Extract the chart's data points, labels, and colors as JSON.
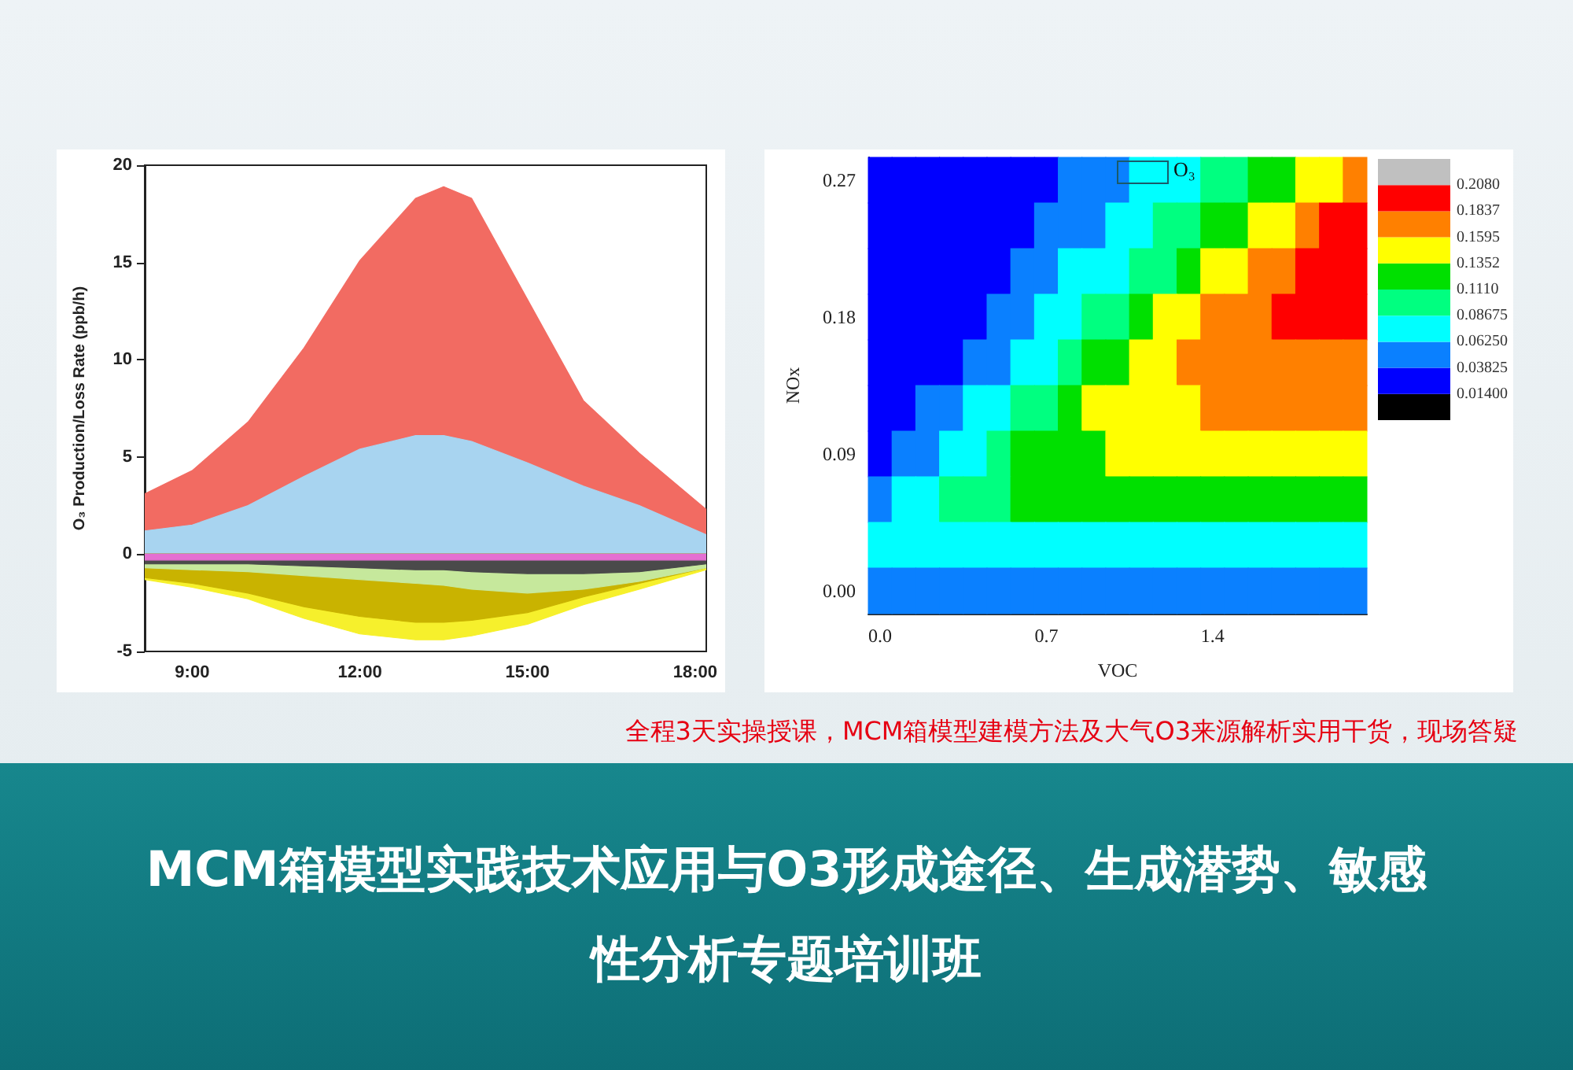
{
  "chart_data": [
    {
      "type": "area",
      "marker": "none",
      "ylabel": "O₃ Production/Loss Rate (ppb/h)",
      "x": [
        8.15,
        9,
        10,
        11,
        12,
        13,
        13.5,
        14,
        15,
        16,
        17,
        18.2
      ],
      "xlim": [
        8.15,
        18.2
      ],
      "xticks": [
        {
          "value": 9,
          "label": "9:00"
        },
        {
          "value": 12,
          "label": "12:00"
        },
        {
          "value": 15,
          "label": "15:00"
        },
        {
          "value": 18,
          "label": "18:00"
        }
      ],
      "ylim": [
        -5,
        20
      ],
      "yticks": [
        -5,
        0,
        5,
        10,
        15,
        20
      ],
      "series": [
        {
          "color": "#f26b62",
          "values": [
            3.1,
            4.3,
            6.8,
            10.6,
            15.1,
            18.3,
            18.9,
            18.3,
            13.1,
            7.9,
            5.2,
            2.3
          ]
        },
        {
          "color": "#a8d4f0",
          "values": [
            1.2,
            1.5,
            2.5,
            4.0,
            5.4,
            6.1,
            6.1,
            5.8,
            4.7,
            3.5,
            2.5,
            1.0
          ]
        },
        {
          "color": "#f6f02c",
          "values": [
            -1.3,
            -1.7,
            -2.3,
            -3.3,
            -4.1,
            -4.4,
            -4.4,
            -4.2,
            -3.6,
            -2.6,
            -1.8,
            -0.8
          ]
        },
        {
          "color": "#c9b300",
          "values": [
            -1.2,
            -1.5,
            -2.0,
            -2.7,
            -3.2,
            -3.5,
            -3.5,
            -3.4,
            -3.0,
            -2.2,
            -1.5,
            -0.7
          ]
        },
        {
          "color": "#c6e89c",
          "values": [
            -0.7,
            -0.8,
            -0.9,
            -1.1,
            -1.3,
            -1.5,
            -1.6,
            -1.8,
            -2.0,
            -1.8,
            -1.4,
            -0.7
          ]
        },
        {
          "color": "#4a4a4a",
          "values": [
            -0.5,
            -0.5,
            -0.5,
            -0.6,
            -0.7,
            -0.8,
            -0.8,
            -0.9,
            -1.0,
            -1.0,
            -0.9,
            -0.5
          ]
        },
        {
          "color": "#e46fd2",
          "values": [
            -0.3,
            -0.3,
            -0.3,
            -0.3,
            -0.3,
            -0.3,
            -0.3,
            -0.3,
            -0.3,
            -0.3,
            -0.3,
            -0.3
          ]
        }
      ]
    },
    {
      "type": "heatmap",
      "xlabel": "VOC",
      "ylabel": "NOx",
      "annotations": [
        "O₃"
      ],
      "categories": [
        "0.0",
        null,
        null,
        null,
        null,
        null,
        null,
        "0.7",
        null,
        null,
        null,
        null,
        null,
        null,
        "1.4",
        null,
        null,
        null,
        null,
        null,
        null
      ],
      "y_categories": [
        "0.27",
        null,
        null,
        "0.18",
        null,
        null,
        "0.09",
        null,
        null,
        "0.00"
      ],
      "clim": [
        -0.01025,
        0.23225
      ],
      "cticks": [
        {
          "value": 0.014,
          "label": "0.01400"
        },
        {
          "value": 0.03825,
          "label": "0.03825"
        },
        {
          "value": 0.0625,
          "label": "0.06250"
        },
        {
          "value": 0.08675,
          "label": "0.08675"
        },
        {
          "value": 0.111,
          "label": "0.1110"
        },
        {
          "value": 0.1352,
          "label": "0.1352"
        },
        {
          "value": 0.1595,
          "label": "0.1595"
        },
        {
          "value": 0.1837,
          "label": "0.1837"
        },
        {
          "value": 0.208,
          "label": "0.2080"
        }
      ],
      "colors": [
        "#000000",
        "#0000ff",
        "#0a80ff",
        "#00ffff",
        "#00ff80",
        "#00e000",
        "#ffff00",
        "#ff8000",
        "#ff0000",
        "#c0c0c0"
      ],
      "cells": [
        [
          0.026,
          0.026,
          0.026,
          0.026,
          0.026,
          0.026,
          0.026,
          0.026,
          0.05,
          0.05,
          0.05,
          0.075,
          0.075,
          0.075,
          0.099,
          0.099,
          0.123,
          0.123,
          0.147,
          0.147,
          0.172
        ],
        [
          0.026,
          0.026,
          0.026,
          0.026,
          0.026,
          0.026,
          0.026,
          0.05,
          0.05,
          0.05,
          0.075,
          0.075,
          0.099,
          0.099,
          0.123,
          0.123,
          0.147,
          0.147,
          0.172,
          0.196,
          0.196
        ],
        [
          0.026,
          0.026,
          0.026,
          0.026,
          0.026,
          0.026,
          0.05,
          0.05,
          0.075,
          0.075,
          0.075,
          0.099,
          0.099,
          0.123,
          0.147,
          0.147,
          0.172,
          0.172,
          0.196,
          0.196,
          0.196
        ],
        [
          0.026,
          0.026,
          0.026,
          0.026,
          0.026,
          0.05,
          0.05,
          0.075,
          0.075,
          0.099,
          0.099,
          0.123,
          0.147,
          0.147,
          0.172,
          0.172,
          0.172,
          0.196,
          0.196,
          0.196,
          0.196
        ],
        [
          0.026,
          0.026,
          0.026,
          0.026,
          0.05,
          0.05,
          0.075,
          0.075,
          0.099,
          0.123,
          0.123,
          0.147,
          0.147,
          0.172,
          0.172,
          0.172,
          0.172,
          0.172,
          0.172,
          0.172,
          0.172
        ],
        [
          0.026,
          0.026,
          0.05,
          0.05,
          0.075,
          0.075,
          0.099,
          0.099,
          0.123,
          0.147,
          0.147,
          0.147,
          0.147,
          0.147,
          0.172,
          0.172,
          0.172,
          0.172,
          0.172,
          0.172,
          0.172
        ],
        [
          0.026,
          0.05,
          0.05,
          0.075,
          0.075,
          0.099,
          0.123,
          0.123,
          0.123,
          0.123,
          0.147,
          0.147,
          0.147,
          0.147,
          0.147,
          0.147,
          0.147,
          0.147,
          0.147,
          0.147,
          0.147
        ],
        [
          0.05,
          0.075,
          0.075,
          0.099,
          0.099,
          0.099,
          0.123,
          0.123,
          0.123,
          0.123,
          0.123,
          0.123,
          0.123,
          0.123,
          0.123,
          0.123,
          0.123,
          0.123,
          0.123,
          0.123,
          0.123
        ],
        [
          0.075,
          0.075,
          0.075,
          0.075,
          0.075,
          0.075,
          0.075,
          0.075,
          0.075,
          0.075,
          0.075,
          0.075,
          0.075,
          0.075,
          0.075,
          0.075,
          0.075,
          0.075,
          0.075,
          0.075,
          0.075
        ],
        [
          0.05,
          0.05,
          0.05,
          0.05,
          0.05,
          0.05,
          0.05,
          0.05,
          0.05,
          0.05,
          0.05,
          0.05,
          0.05,
          0.05,
          0.05,
          0.05,
          0.05,
          0.05,
          0.05,
          0.05,
          0.05
        ]
      ]
    },
    {
      "type": "other",
      "title": "MCM箱模型实践技术应用与O3形成途径、生成潜势、敏感性分析专题培训班",
      "annotations": [
        "全程3天实操授课，MCM箱模型建模方法及大气O3来源解析实用干货，现场答疑"
      ]
    }
  ]
}
